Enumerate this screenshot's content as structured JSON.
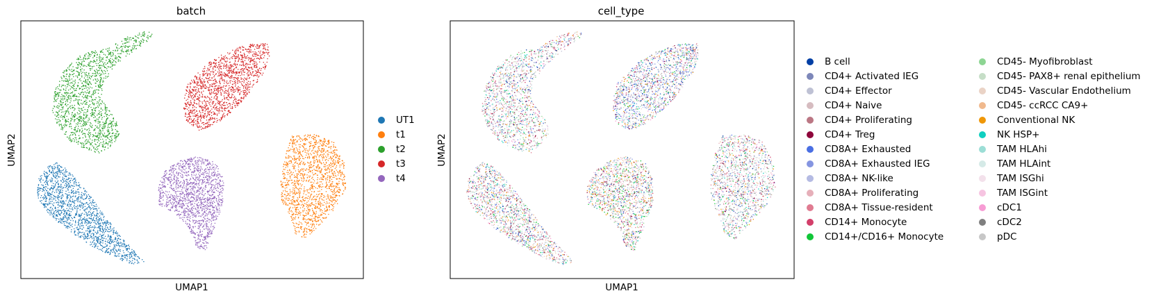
{
  "chart_data": [
    {
      "type": "scatter",
      "title": "batch",
      "xlabel": "UMAP1",
      "ylabel": "UMAP2",
      "grid": false,
      "legend_placement": "right",
      "series": [
        {
          "name": "UT1",
          "color": "#1f77b4",
          "cluster": "bottom-left"
        },
        {
          "name": "t1",
          "color": "#ff7f0e",
          "cluster": "right"
        },
        {
          "name": "t2",
          "color": "#2ca02c",
          "cluster": "top-left"
        },
        {
          "name": "t3",
          "color": "#d62728",
          "cluster": "top-center"
        },
        {
          "name": "t4",
          "color": "#9467bd",
          "cluster": "bottom-center"
        }
      ]
    },
    {
      "type": "scatter",
      "title": "cell_type",
      "xlabel": "UMAP1",
      "ylabel": "UMAP2",
      "grid": false,
      "legend_placement": "right (two columns)",
      "series": [
        {
          "name": "B cell",
          "color": "#023fa5"
        },
        {
          "name": "CD4+ Activated IEG",
          "color": "#7d87b9"
        },
        {
          "name": "CD4+ Effector",
          "color": "#bec1d4"
        },
        {
          "name": "CD4+ Naive",
          "color": "#d6bcc0"
        },
        {
          "name": "CD4+ Proliferating",
          "color": "#bb7784"
        },
        {
          "name": "CD4+ Treg",
          "color": "#8e063b"
        },
        {
          "name": "CD8A+ Exhausted",
          "color": "#4a6fe3"
        },
        {
          "name": "CD8A+ Exhausted IEG",
          "color": "#8595e1"
        },
        {
          "name": "CD8A+ NK-like",
          "color": "#b5bbe3"
        },
        {
          "name": "CD8A+ Proliferating",
          "color": "#e6afb9"
        },
        {
          "name": "CD8A+ Tissue-resident",
          "color": "#e07b91"
        },
        {
          "name": "CD14+ Monocyte",
          "color": "#d33f6a"
        },
        {
          "name": "CD14+/CD16+ Monocyte",
          "color": "#11c638"
        },
        {
          "name": "CD45- Myofibroblast",
          "color": "#8dd593"
        },
        {
          "name": "CD45- PAX8+ renal epithelium",
          "color": "#c6dec7"
        },
        {
          "name": "CD45- Vascular Endothelium",
          "color": "#ead3c6"
        },
        {
          "name": "CD45- ccRCC CA9+",
          "color": "#f0b98d"
        },
        {
          "name": "Conventional NK",
          "color": "#ef9708"
        },
        {
          "name": "NK HSP+",
          "color": "#0fcfc0"
        },
        {
          "name": "TAM HLAhi",
          "color": "#9cded6"
        },
        {
          "name": "TAM HLAint",
          "color": "#d5eae7"
        },
        {
          "name": "TAM ISGhi",
          "color": "#f3e1eb"
        },
        {
          "name": "TAM ISGint",
          "color": "#f6c4e1"
        },
        {
          "name": "cDC1",
          "color": "#f79cd4"
        },
        {
          "name": "cDC2",
          "color": "#7f7f7f"
        },
        {
          "name": "pDC",
          "color": "#c7c7c7"
        }
      ]
    }
  ]
}
